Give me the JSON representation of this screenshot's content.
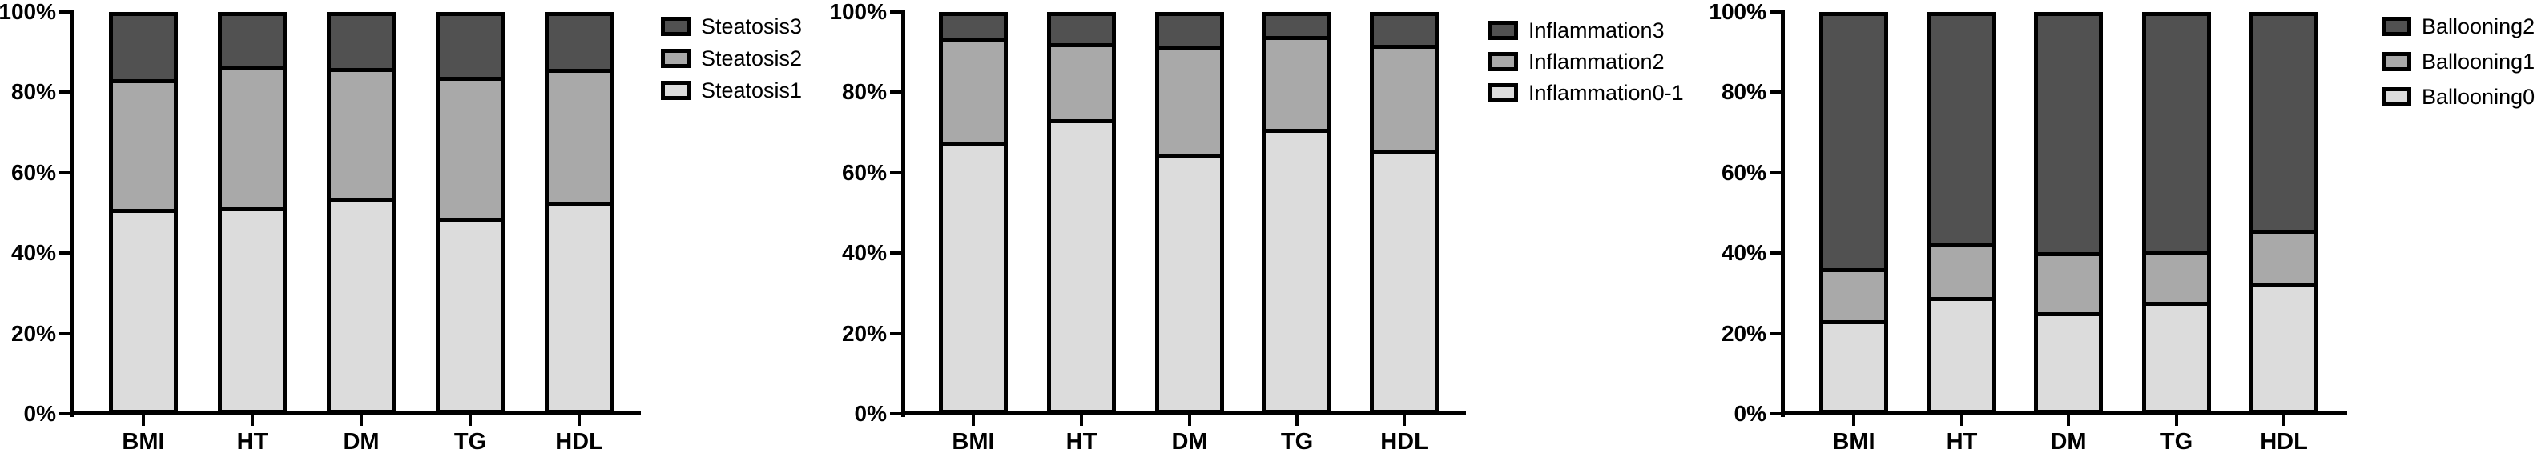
{
  "figure": {
    "background": "#ffffff",
    "text_color": "#000000",
    "axis_color": "#000000"
  },
  "colors": {
    "grade_low": "#dcdcdc",
    "grade_mid": "#a9a9a9",
    "grade_high": "#515151"
  },
  "y_axis": {
    "tick_labels": [
      "0%",
      "20%",
      "40%",
      "60%",
      "80%",
      "100%"
    ],
    "min": 0,
    "max": 100,
    "step": 20
  },
  "chart_data": [
    {
      "name": "steatosis",
      "type": "bar",
      "stacked": true,
      "percent": true,
      "categories": [
        "BMI",
        "HT",
        "DM",
        "TG",
        "HDL"
      ],
      "series": [
        {
          "name": "Steatosis1",
          "color_key": "grade_low",
          "values": [
            50.1,
            50.4,
            52.8,
            47.5,
            51.6
          ]
        },
        {
          "name": "Steatosis2",
          "color_key": "grade_mid",
          "values": [
            32.8,
            35.9,
            32.9,
            36.1,
            34.0
          ]
        },
        {
          "name": "Steatosis3",
          "color_key": "grade_high",
          "values": [
            17.1,
            13.7,
            14.3,
            16.4,
            14.4
          ]
        }
      ],
      "title": "",
      "xlabel": "",
      "ylabel": "",
      "ylim": [
        0,
        100
      ],
      "grid": false,
      "legend_position": "right-top",
      "legend_order": "top-grade-first"
    },
    {
      "name": "inflammation",
      "type": "bar",
      "stacked": true,
      "percent": true,
      "categories": [
        "BMI",
        "HT",
        "DM",
        "TG",
        "HDL"
      ],
      "series": [
        {
          "name": "Inflammation0-1",
          "color_key": "grade_low",
          "values": [
            67.1,
            72.7,
            63.8,
            70.4,
            65.1
          ]
        },
        {
          "name": "Inflammation2",
          "color_key": "grade_mid",
          "values": [
            26.3,
            19.3,
            27.4,
            23.6,
            26.5
          ]
        },
        {
          "name": "Inflammation3",
          "color_key": "grade_high",
          "values": [
            6.6,
            8.0,
            8.8,
            6.0,
            8.4
          ]
        }
      ],
      "title": "",
      "xlabel": "",
      "ylabel": "",
      "ylim": [
        0,
        100
      ],
      "grid": false,
      "legend_position": "right-top",
      "legend_order": "top-grade-first"
    },
    {
      "name": "ballooning",
      "type": "bar",
      "stacked": true,
      "percent": true,
      "categories": [
        "BMI",
        "HT",
        "DM",
        "TG",
        "HDL"
      ],
      "series": [
        {
          "name": "Ballooning0",
          "color_key": "grade_low",
          "values": [
            21.7,
            27.6,
            23.8,
            26.4,
            31.2
          ]
        },
        {
          "name": "Ballooning1",
          "color_key": "grade_mid",
          "values": [
            13.2,
            13.9,
            15.2,
            12.8,
            13.6
          ]
        },
        {
          "name": "Ballooning2",
          "color_key": "grade_high",
          "values": [
            65.1,
            58.5,
            61.0,
            60.8,
            55.2
          ]
        }
      ],
      "title": "",
      "xlabel": "",
      "ylabel": "",
      "ylim": [
        0,
        100
      ],
      "grid": false,
      "legend_position": "right-top",
      "legend_order": "top-grade-first"
    }
  ]
}
